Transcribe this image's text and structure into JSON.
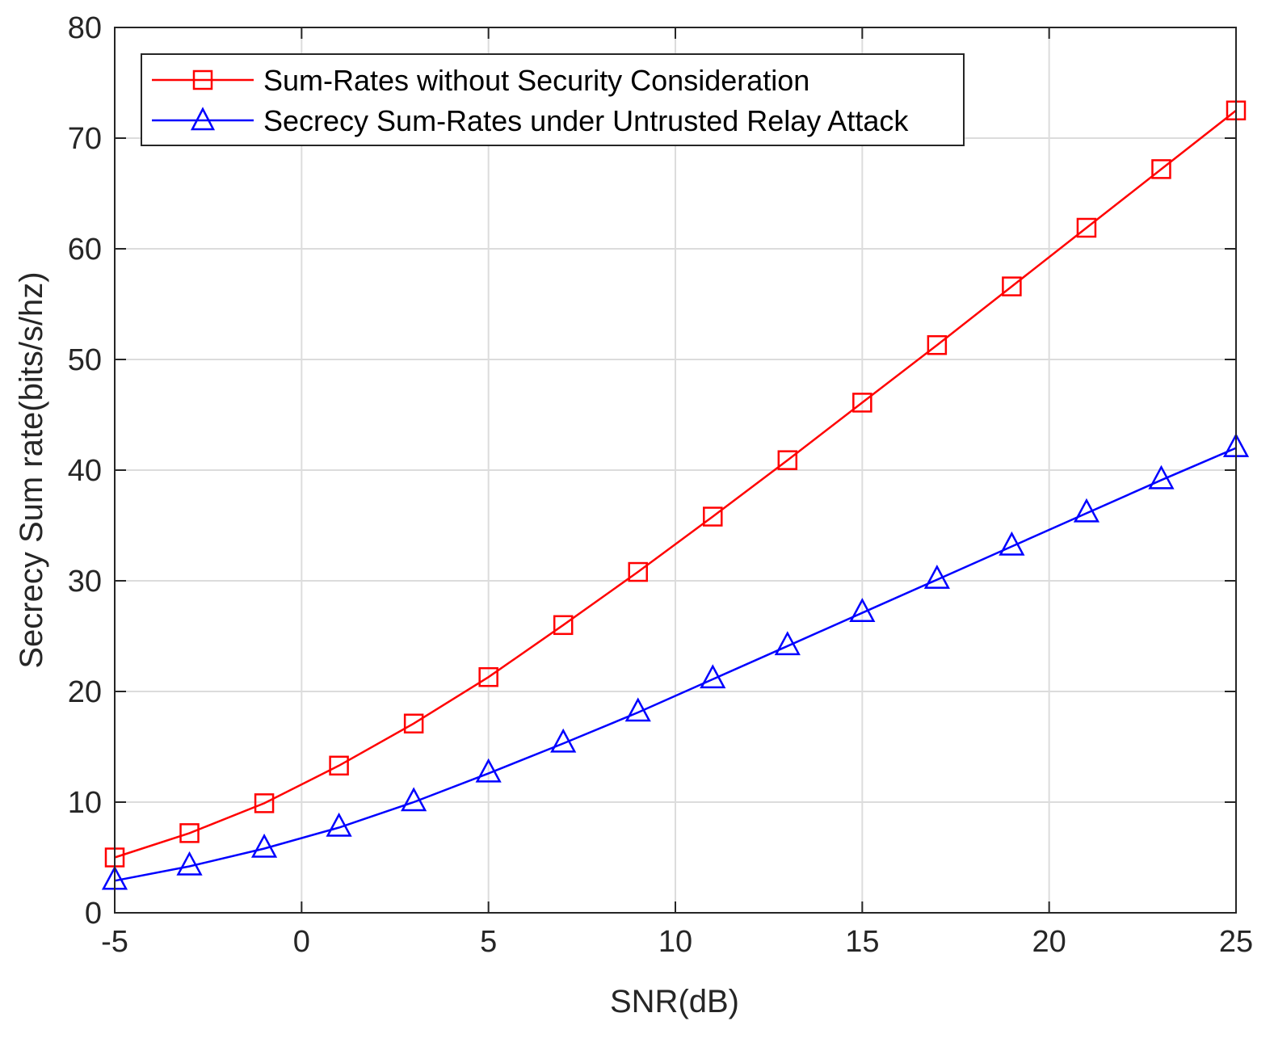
{
  "chart_data": {
    "type": "line",
    "title": "",
    "xlabel": "SNR(dB)",
    "ylabel": "Secrecy Sum rate(bits/s/hz)",
    "xlim": [
      -5,
      25
    ],
    "ylim": [
      0,
      80
    ],
    "grid": true,
    "legend_position": "top-left",
    "x_ticks": [
      -5,
      0,
      5,
      10,
      15,
      20,
      25
    ],
    "x_tick_labels": [
      "-5",
      "0",
      "5",
      "10",
      "15",
      "20",
      "25"
    ],
    "y_ticks": [
      0,
      10,
      20,
      30,
      40,
      50,
      60,
      70,
      80
    ],
    "y_tick_labels": [
      "0",
      "10",
      "20",
      "30",
      "40",
      "50",
      "60",
      "70",
      "80"
    ],
    "x": [
      -5,
      -3,
      -1,
      1,
      3,
      5,
      7,
      9,
      11,
      13,
      15,
      17,
      19,
      21,
      23,
      25
    ],
    "series": [
      {
        "name": "Sum-Rates without Security Consideration",
        "color": "#ff0000",
        "marker": "square",
        "values": [
          5.0,
          7.2,
          9.9,
          13.3,
          17.1,
          21.3,
          26.0,
          30.8,
          35.8,
          40.9,
          46.1,
          51.3,
          56.6,
          61.9,
          67.2,
          72.5
        ]
      },
      {
        "name": "Secrecy Sum-Rates under Untrusted Relay Attack",
        "color": "#0000ff",
        "marker": "triangle",
        "values": [
          2.9,
          4.2,
          5.8,
          7.7,
          10.0,
          12.6,
          15.3,
          18.1,
          21.1,
          24.1,
          27.1,
          30.1,
          33.1,
          36.1,
          39.1,
          42.0
        ]
      }
    ]
  }
}
